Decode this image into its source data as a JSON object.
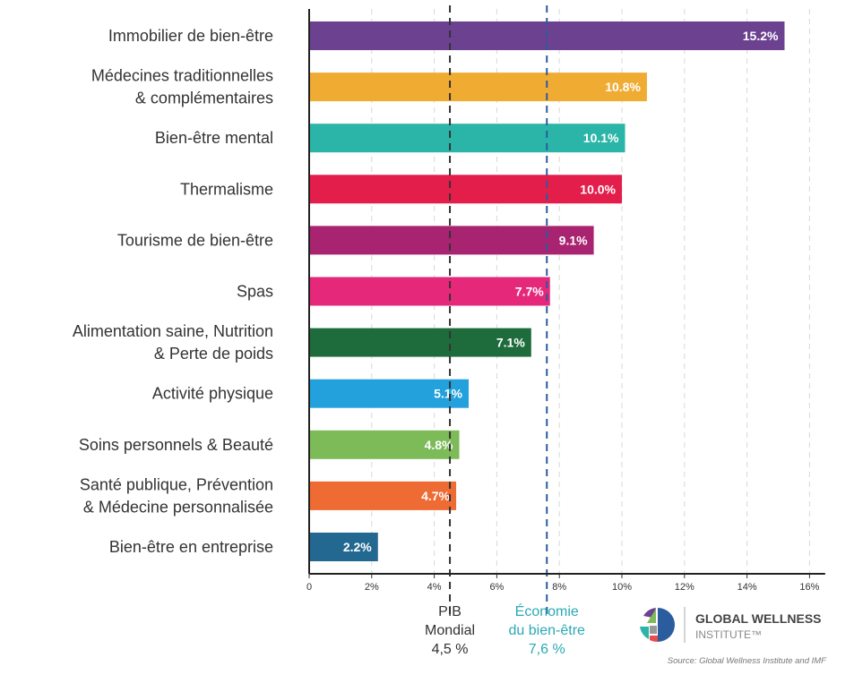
{
  "chart_data": {
    "type": "bar",
    "orientation": "horizontal",
    "categories": [
      [
        "Immobilier de bien-être"
      ],
      [
        "Médecines traditionnelles",
        "& complémentaires"
      ],
      [
        "Bien-être mental"
      ],
      [
        "Thermalisme"
      ],
      [
        "Tourisme de bien-être"
      ],
      [
        "Spas"
      ],
      [
        "Alimentation saine, Nutrition",
        "& Perte de poids"
      ],
      [
        "Activité physique"
      ],
      [
        "Soins personnels & Beauté"
      ],
      [
        "Santé publique, Prévention",
        "& Médecine personnalisée"
      ],
      [
        "Bien-être en entreprise"
      ]
    ],
    "values": [
      15.2,
      10.8,
      10.1,
      10.0,
      9.1,
      7.7,
      7.1,
      5.1,
      4.8,
      4.7,
      2.2
    ],
    "value_labels": [
      "15.2%",
      "10.8%",
      "10.1%",
      "10.0%",
      "9.1%",
      "7.7%",
      "7.1%",
      "5.1%",
      "4.8%",
      "4.7%",
      "2.2%"
    ],
    "colors": [
      "#6b4190",
      "#f0ab32",
      "#2bb5a8",
      "#e31e4b",
      "#a82370",
      "#e5287a",
      "#1e6b3b",
      "#22a1dc",
      "#7dbb58",
      "#ee6b33",
      "#236890"
    ],
    "xlim": [
      0,
      16.5
    ],
    "xticks": [
      0,
      2,
      4,
      6,
      8,
      10,
      12,
      14,
      16
    ],
    "xtick_labels": [
      "0",
      "2%",
      "4%",
      "6%",
      "8%",
      "10%",
      "12%",
      "14%",
      "16%"
    ],
    "grid": true,
    "reference_lines": [
      {
        "value": 4.5,
        "label_lines": [
          "PIB",
          "Mondial",
          "4,5 %"
        ],
        "color": "#333333",
        "text_color": "#333333"
      },
      {
        "value": 7.6,
        "label_lines": [
          "Économie",
          "du bien-être",
          "7,6 %"
        ],
        "color": "#2b5c9e",
        "text_color": "#2aa9b5"
      }
    ]
  },
  "logo": {
    "line1": "GLOBAL WELLNESS",
    "line2": "INSTITUTE™"
  },
  "source": "Source: Global Wellness Institute and IMF"
}
